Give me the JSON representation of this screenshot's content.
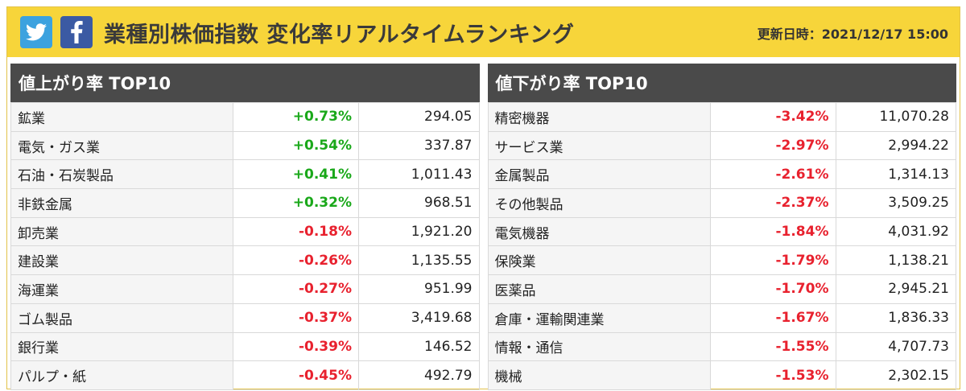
{
  "header": {
    "title": "業種別株価指数 変化率リアルタイムランキング",
    "updated_label": "更新日時：2021/12/17 15:00",
    "share_icons": [
      "twitter-icon",
      "facebook-icon"
    ]
  },
  "colors": {
    "banner": "#f7d53a",
    "panel_head": "#4a4a4a",
    "up": "#1aa81a",
    "down": "#e8212e"
  },
  "top_gainers": {
    "title": "値上がり率 TOP10",
    "rows": [
      {
        "name": "鉱業",
        "change": "+0.73%",
        "dir": "up",
        "value": "294.05"
      },
      {
        "name": "電気・ガス業",
        "change": "+0.54%",
        "dir": "up",
        "value": "337.87"
      },
      {
        "name": "石油・石炭製品",
        "change": "+0.41%",
        "dir": "up",
        "value": "1,011.43"
      },
      {
        "name": "非鉄金属",
        "change": "+0.32%",
        "dir": "up",
        "value": "968.51"
      },
      {
        "name": "卸売業",
        "change": "-0.18%",
        "dir": "down",
        "value": "1,921.20"
      },
      {
        "name": "建設業",
        "change": "-0.26%",
        "dir": "down",
        "value": "1,135.55"
      },
      {
        "name": "海運業",
        "change": "-0.27%",
        "dir": "down",
        "value": "951.99"
      },
      {
        "name": "ゴム製品",
        "change": "-0.37%",
        "dir": "down",
        "value": "3,419.68"
      },
      {
        "name": "銀行業",
        "change": "-0.39%",
        "dir": "down",
        "value": "146.52"
      },
      {
        "name": "パルプ・紙",
        "change": "-0.45%",
        "dir": "down",
        "value": "492.79"
      }
    ]
  },
  "top_losers": {
    "title": "値下がり率 TOP10",
    "rows": [
      {
        "name": "精密機器",
        "change": "-3.42%",
        "dir": "down",
        "value": "11,070.28"
      },
      {
        "name": "サービス業",
        "change": "-2.97%",
        "dir": "down",
        "value": "2,994.22"
      },
      {
        "name": "金属製品",
        "change": "-2.61%",
        "dir": "down",
        "value": "1,314.13"
      },
      {
        "name": "その他製品",
        "change": "-2.37%",
        "dir": "down",
        "value": "3,509.25"
      },
      {
        "name": "電気機器",
        "change": "-1.84%",
        "dir": "down",
        "value": "4,031.92"
      },
      {
        "name": "保険業",
        "change": "-1.79%",
        "dir": "down",
        "value": "1,138.21"
      },
      {
        "name": "医薬品",
        "change": "-1.70%",
        "dir": "down",
        "value": "2,945.21"
      },
      {
        "name": "倉庫・運輸関連業",
        "change": "-1.67%",
        "dir": "down",
        "value": "1,836.33"
      },
      {
        "name": "情報・通信",
        "change": "-1.55%",
        "dir": "down",
        "value": "4,707.73"
      },
      {
        "name": "機械",
        "change": "-1.53%",
        "dir": "down",
        "value": "2,302.15"
      }
    ]
  }
}
